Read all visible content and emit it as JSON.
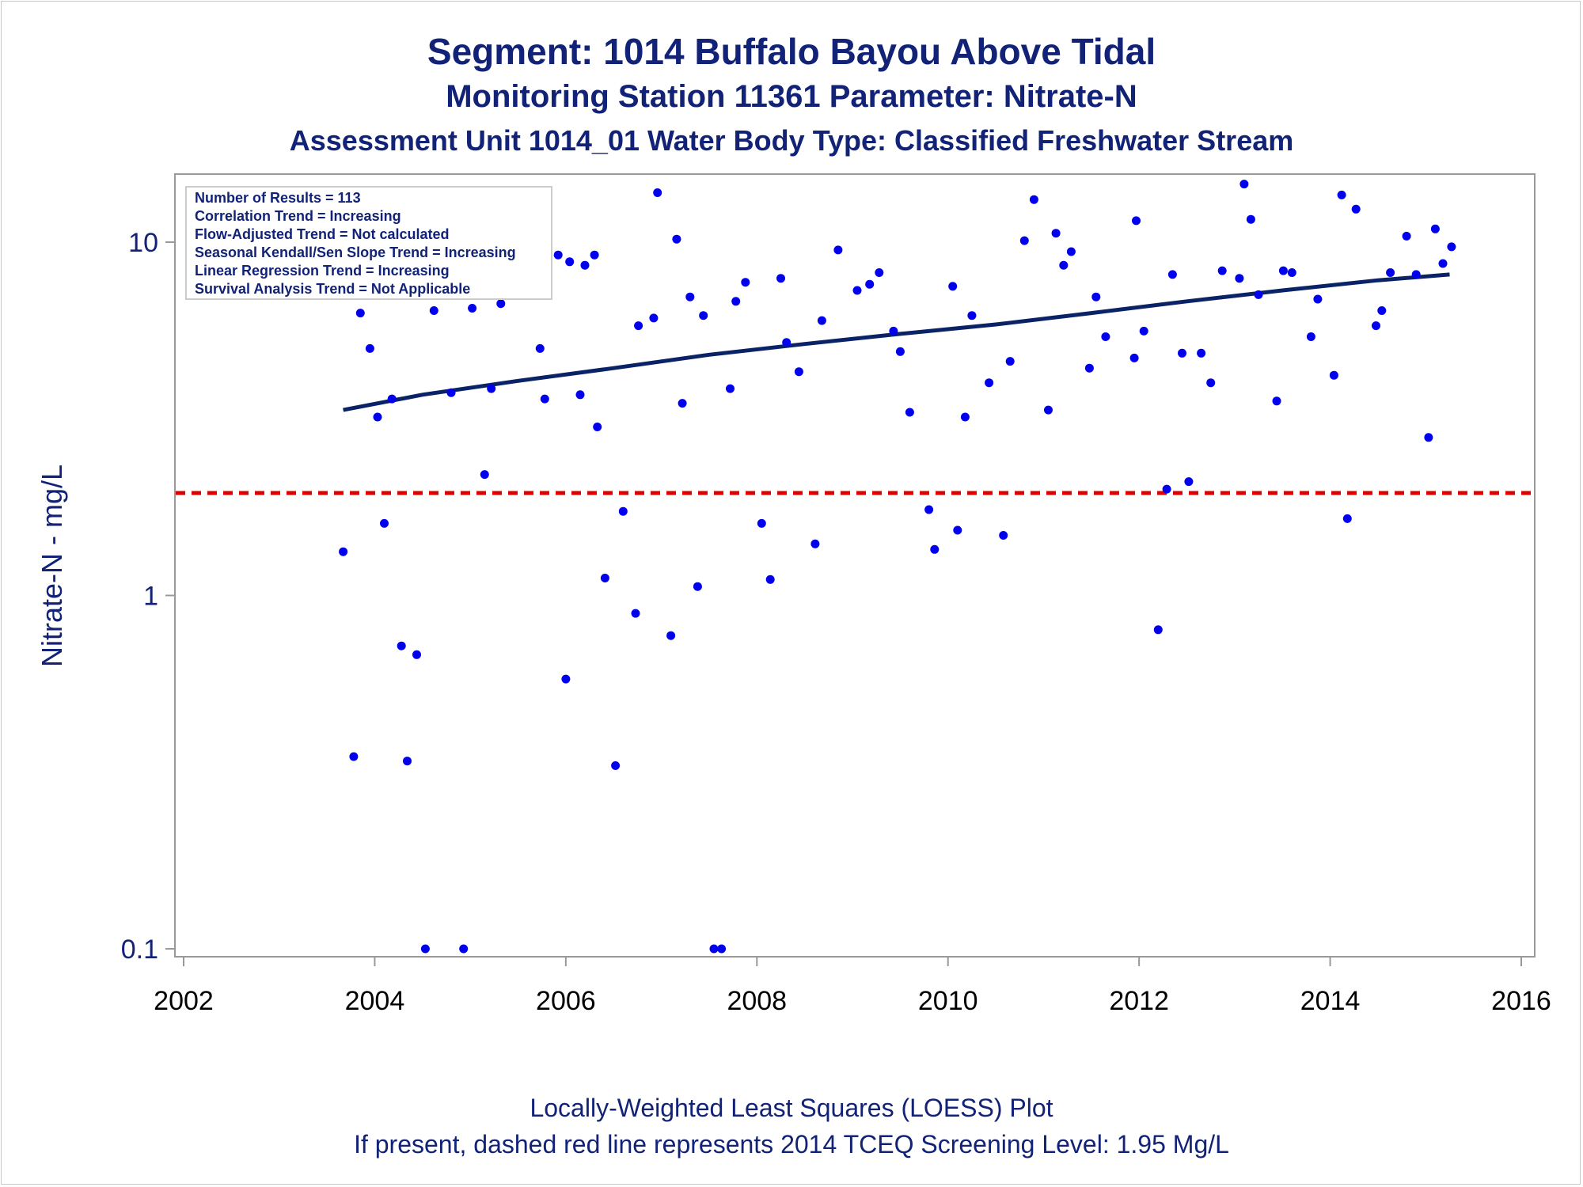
{
  "titles": {
    "line1": "Segment: 1014  Buffalo Bayou Above Tidal",
    "line2": "Monitoring Station 11361 Parameter: Nitrate-N",
    "line3": "Assessment Unit 1014_01   Water Body Type: Classified Freshwater Stream"
  },
  "footnotes": {
    "line1": "Locally-Weighted Least Squares (LOESS) Plot",
    "line2": "If present, dashed red line represents 2014 TCEQ Screening Level: 1.95 Mg/L"
  },
  "colors": {
    "title": "#112277",
    "points": "#0000ee",
    "trend_line": "#0a2266",
    "screening_line": "#dd0000",
    "axis": "#999999"
  },
  "chart_data": {
    "type": "scatter",
    "x_scale": "linear (year)",
    "y_scale": "log",
    "xlim": [
      2001.9,
      2016.1
    ],
    "ylim": [
      0.1,
      16
    ],
    "x_ticks": [
      "2002",
      "2004",
      "2006",
      "2008",
      "2010",
      "2012",
      "2014",
      "2016"
    ],
    "x_tick_values": [
      2002,
      2004,
      2006,
      2008,
      2010,
      2012,
      2014,
      2016
    ],
    "y_ticks": [
      "0.1",
      "1",
      "10"
    ],
    "y_tick_values": [
      0.1,
      1,
      10
    ],
    "xlabel": "",
    "ylabel": "Nitrate-N - mg/L",
    "grid": false,
    "legend_box": {
      "placement": "top-left",
      "lines": [
        "Number of Results = 113",
        "Correlation Trend = Increasing",
        "Flow-Adjusted Trend = Not calculated",
        "Seasonal Kendall/Sen Slope Trend = Increasing",
        "Linear Regression Trend = Increasing",
        "Survival Analysis Trend = Not Applicable"
      ]
    },
    "reference_line": {
      "y": 1.95,
      "style": "dashed"
    },
    "trend_line": {
      "type": "exponential",
      "x": [
        2003.67,
        2004.5,
        2005.5,
        2006.5,
        2007.5,
        2008.5,
        2009.5,
        2010.5,
        2011.5,
        2012.5,
        2013.5,
        2014.5,
        2015.25
      ],
      "y": [
        3.35,
        3.7,
        4.05,
        4.4,
        4.8,
        5.15,
        5.5,
        5.85,
        6.3,
        6.8,
        7.3,
        7.8,
        8.1
      ]
    },
    "series": [
      {
        "points": [
          [
            2003.67,
            1.33
          ],
          [
            2003.78,
            0.35
          ],
          [
            2003.85,
            6.3
          ],
          [
            2003.95,
            5.0
          ],
          [
            2004.03,
            3.2
          ],
          [
            2004.1,
            1.6
          ],
          [
            2004.18,
            3.6
          ],
          [
            2004.28,
            0.72
          ],
          [
            2004.34,
            0.34
          ],
          [
            2004.44,
            0.68
          ],
          [
            2004.53,
            0.1
          ],
          [
            2004.62,
            6.4
          ],
          [
            2004.75,
            7.3
          ],
          [
            2004.8,
            3.75
          ],
          [
            2004.87,
            7.2
          ],
          [
            2004.93,
            0.1
          ],
          [
            2005.02,
            6.5
          ],
          [
            2005.15,
            2.2
          ],
          [
            2005.22,
            3.85
          ],
          [
            2005.32,
            6.7
          ],
          [
            2005.35,
            8.5
          ],
          [
            2005.73,
            5.0
          ],
          [
            2005.78,
            3.6
          ],
          [
            2005.92,
            9.2
          ],
          [
            2006.0,
            0.58
          ],
          [
            2006.04,
            8.8
          ],
          [
            2006.15,
            3.7
          ],
          [
            2006.2,
            8.6
          ],
          [
            2006.3,
            9.2
          ],
          [
            2006.33,
            3.0
          ],
          [
            2006.41,
            1.12
          ],
          [
            2006.52,
            0.33
          ],
          [
            2006.6,
            1.73
          ],
          [
            2006.73,
            0.89
          ],
          [
            2006.76,
            5.8
          ],
          [
            2006.92,
            6.1
          ],
          [
            2006.96,
            13.8
          ],
          [
            2007.1,
            0.77
          ],
          [
            2007.16,
            10.2
          ],
          [
            2007.22,
            3.5
          ],
          [
            2007.3,
            7.0
          ],
          [
            2007.38,
            1.06
          ],
          [
            2007.44,
            6.2
          ],
          [
            2007.55,
            0.1
          ],
          [
            2007.63,
            0.1
          ],
          [
            2007.72,
            3.85
          ],
          [
            2007.78,
            6.8
          ],
          [
            2007.88,
            7.7
          ],
          [
            2008.05,
            1.6
          ],
          [
            2008.14,
            1.11
          ],
          [
            2008.25,
            7.9
          ],
          [
            2008.31,
            5.2
          ],
          [
            2008.44,
            4.3
          ],
          [
            2008.61,
            1.4
          ],
          [
            2008.68,
            6.0
          ],
          [
            2008.85,
            9.5
          ],
          [
            2009.05,
            7.3
          ],
          [
            2009.18,
            7.6
          ],
          [
            2009.28,
            8.2
          ],
          [
            2009.43,
            5.6
          ],
          [
            2009.5,
            4.9
          ],
          [
            2009.6,
            3.3
          ],
          [
            2009.8,
            1.75
          ],
          [
            2009.86,
            1.35
          ],
          [
            2010.05,
            7.5
          ],
          [
            2010.1,
            1.53
          ],
          [
            2010.18,
            3.2
          ],
          [
            2010.25,
            6.2
          ],
          [
            2010.43,
            4.0
          ],
          [
            2010.58,
            1.48
          ],
          [
            2010.65,
            4.6
          ],
          [
            2010.8,
            10.1
          ],
          [
            2010.9,
            13.2
          ],
          [
            2011.05,
            3.35
          ],
          [
            2011.13,
            10.6
          ],
          [
            2011.21,
            8.6
          ],
          [
            2011.29,
            9.4
          ],
          [
            2011.48,
            4.4
          ],
          [
            2011.55,
            7.0
          ],
          [
            2011.65,
            5.4
          ],
          [
            2011.95,
            4.7
          ],
          [
            2011.97,
            11.5
          ],
          [
            2012.05,
            5.6
          ],
          [
            2012.2,
            0.8
          ],
          [
            2012.29,
            2.0
          ],
          [
            2012.35,
            8.1
          ],
          [
            2012.45,
            4.85
          ],
          [
            2012.52,
            2.1
          ],
          [
            2012.65,
            4.85
          ],
          [
            2012.75,
            4.0
          ],
          [
            2012.87,
            8.3
          ],
          [
            2013.05,
            7.9
          ],
          [
            2013.1,
            14.6
          ],
          [
            2013.17,
            11.6
          ],
          [
            2013.25,
            7.1
          ],
          [
            2013.44,
            3.55
          ],
          [
            2013.51,
            8.3
          ],
          [
            2013.6,
            8.2
          ],
          [
            2013.8,
            5.4
          ],
          [
            2013.87,
            6.9
          ],
          [
            2014.04,
            4.2
          ],
          [
            2014.12,
            13.6
          ],
          [
            2014.18,
            1.65
          ],
          [
            2014.27,
            12.4
          ],
          [
            2014.48,
            5.8
          ],
          [
            2014.54,
            6.4
          ],
          [
            2014.63,
            8.2
          ],
          [
            2014.8,
            10.4
          ],
          [
            2014.9,
            8.1
          ],
          [
            2015.03,
            2.8
          ],
          [
            2015.1,
            10.9
          ],
          [
            2015.18,
            8.7
          ],
          [
            2015.27,
            9.7
          ]
        ]
      }
    ]
  }
}
